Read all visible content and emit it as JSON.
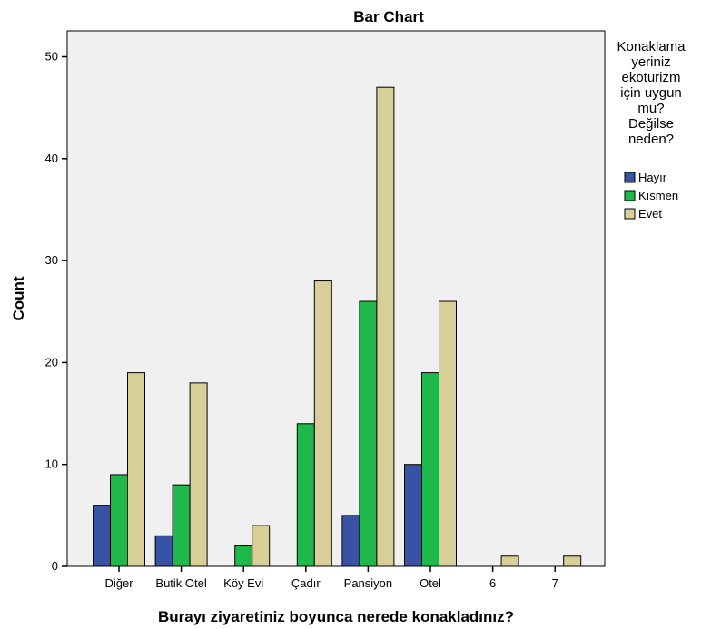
{
  "chart_data": {
    "type": "bar",
    "title": "Bar Chart",
    "xlabel": "Burayı ziyaretiniz boyunca nerede konakladınız?",
    "ylabel": "Count",
    "ylim": [
      0,
      52.5
    ],
    "yticks": [
      0,
      10,
      20,
      30,
      40,
      50
    ],
    "categories": [
      "Diğer",
      "Butik Otel",
      "Köy Evi",
      "Çadır",
      "Pansiyon",
      "Otel",
      "6",
      "7"
    ],
    "series": [
      {
        "name": "Hayır",
        "color": "#3953a4",
        "values": [
          6,
          3,
          0,
          0,
          5,
          10,
          0,
          0
        ]
      },
      {
        "name": "Kısmen",
        "color": "#1fb84a",
        "values": [
          9,
          8,
          2,
          14,
          26,
          19,
          0,
          0
        ]
      },
      {
        "name": "Evet",
        "color": "#d8cf98",
        "values": [
          19,
          18,
          4,
          28,
          47,
          26,
          1,
          1
        ]
      }
    ],
    "legend": {
      "title_lines": [
        "Konaklama",
        "yeriniz",
        "ekoturizm",
        "için uygun",
        "mu?",
        "Değilse",
        "neden?"
      ],
      "position": "right"
    },
    "grid": false,
    "plot_background": "#f0f0f0"
  }
}
